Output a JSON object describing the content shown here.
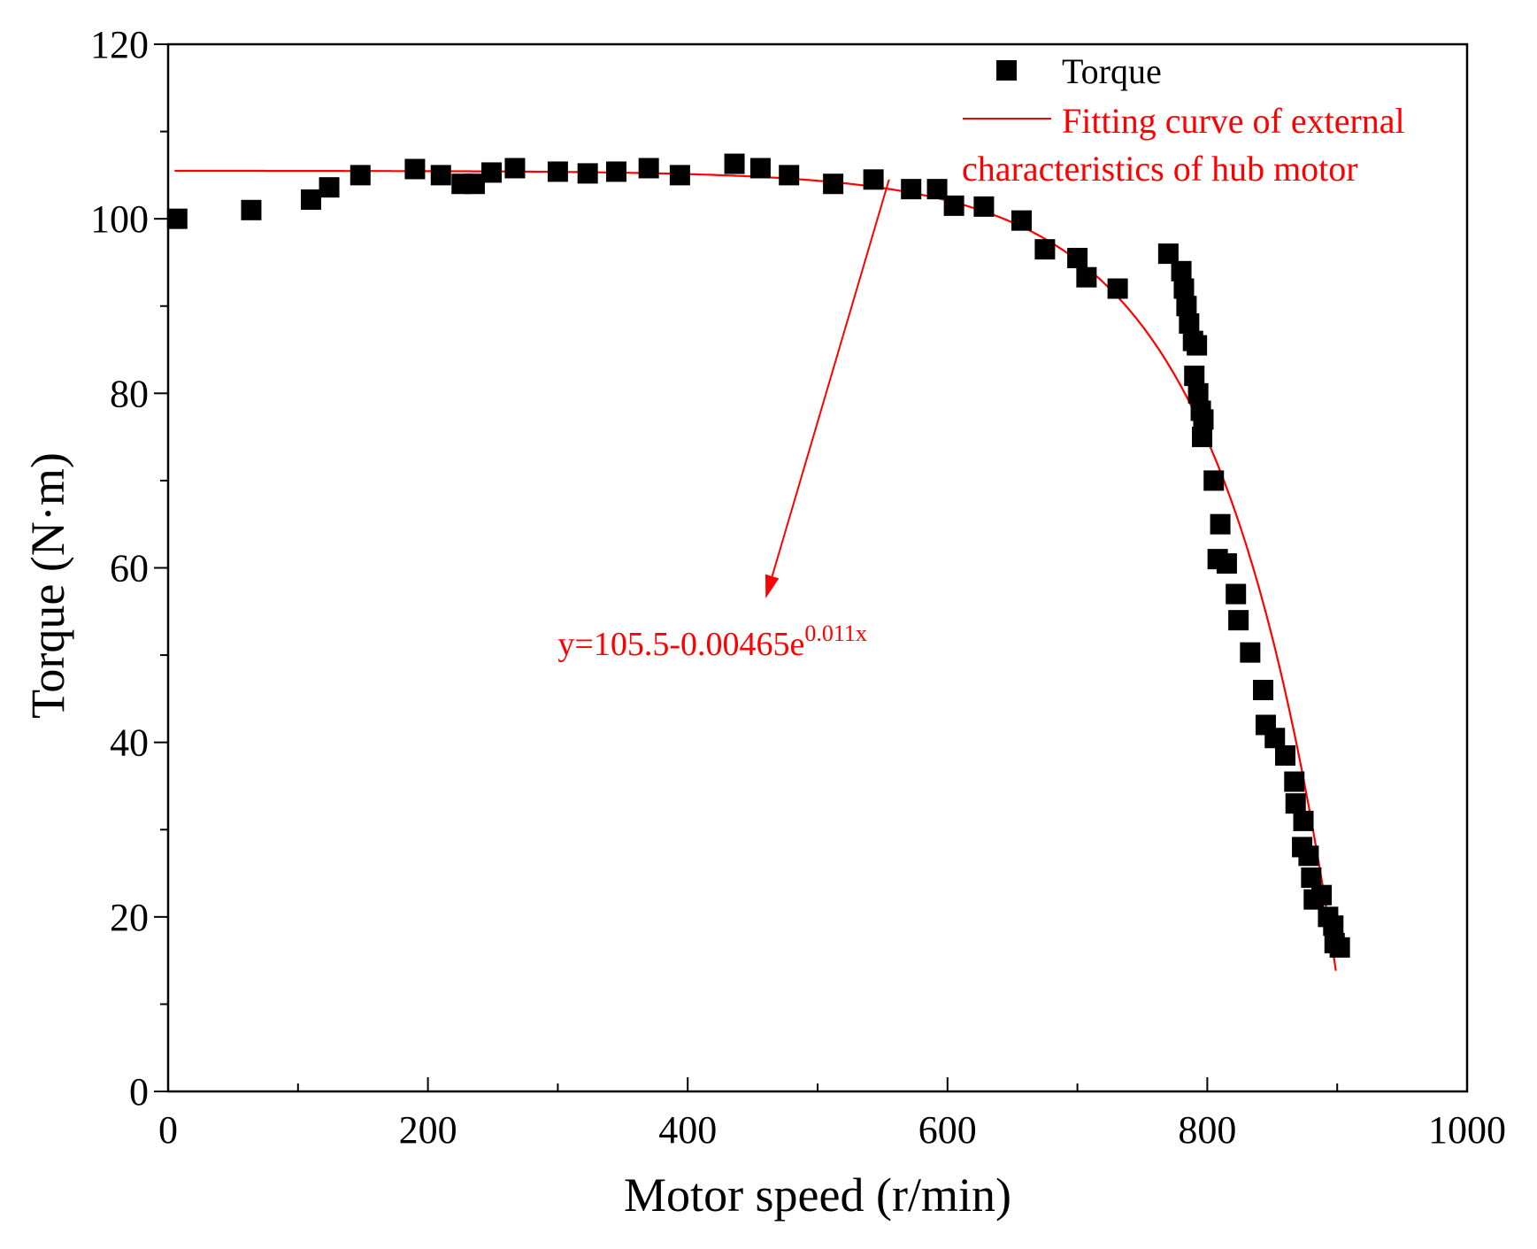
{
  "chart_data": {
    "type": "scatter",
    "title": "",
    "xlabel": "Motor speed (r/min)",
    "ylabel": "Torque (N·m)",
    "xlim": [
      0,
      1000
    ],
    "ylim": [
      0,
      120
    ],
    "x_ticks": [
      0,
      200,
      400,
      600,
      800,
      1000
    ],
    "x_minor_ticks": [
      100,
      300,
      500,
      700,
      900
    ],
    "y_ticks": [
      0,
      20,
      40,
      60,
      80,
      100,
      120
    ],
    "y_minor_ticks": [
      10,
      30,
      50,
      70,
      90,
      110
    ],
    "grid": false,
    "legend_position": "top-right",
    "series": [
      {
        "name": "Torque",
        "kind": "scatter",
        "marker": "square",
        "color": "#000000",
        "points": [
          [
            7,
            100
          ],
          [
            64,
            101
          ],
          [
            110,
            102.2
          ],
          [
            124,
            103.6
          ],
          [
            148,
            105
          ],
          [
            190,
            105.7
          ],
          [
            210,
            105
          ],
          [
            226,
            104
          ],
          [
            236,
            104
          ],
          [
            249,
            105.3
          ],
          [
            267,
            105.8
          ],
          [
            300,
            105.4
          ],
          [
            323,
            105.2
          ],
          [
            345,
            105.4
          ],
          [
            370,
            105.8
          ],
          [
            394,
            105
          ],
          [
            436,
            106.3
          ],
          [
            456,
            105.8
          ],
          [
            478,
            105
          ],
          [
            512,
            104
          ],
          [
            543,
            104.5
          ],
          [
            572,
            103.4
          ],
          [
            592,
            103.4
          ],
          [
            605,
            101.5
          ],
          [
            628,
            101.4
          ],
          [
            657,
            99.8
          ],
          [
            675,
            96.5
          ],
          [
            700,
            95.5
          ],
          [
            707,
            93.3
          ],
          [
            731,
            92
          ],
          [
            770,
            96
          ],
          [
            780,
            94
          ],
          [
            782,
            92
          ],
          [
            784,
            90
          ],
          [
            786,
            88
          ],
          [
            789,
            86
          ],
          [
            792,
            85.5
          ],
          [
            790,
            82
          ],
          [
            793,
            80
          ],
          [
            795,
            78
          ],
          [
            797,
            77
          ],
          [
            796,
            75
          ],
          [
            805,
            70
          ],
          [
            810,
            65
          ],
          [
            808,
            61
          ],
          [
            815,
            60.5
          ],
          [
            822,
            57
          ],
          [
            824,
            54
          ],
          [
            833,
            50.3
          ],
          [
            843,
            46
          ],
          [
            845,
            42
          ],
          [
            852,
            40.5
          ],
          [
            860,
            38.5
          ],
          [
            867,
            35.5
          ],
          [
            868,
            33
          ],
          [
            874,
            31
          ],
          [
            873,
            28
          ],
          [
            878,
            27
          ],
          [
            880,
            24.5
          ],
          [
            882,
            22
          ],
          [
            888,
            22.5
          ],
          [
            893,
            20
          ],
          [
            897,
            19
          ],
          [
            898,
            17
          ],
          [
            902,
            16.5
          ]
        ]
      },
      {
        "name": "Fitting curve of external characteristics of hub motor",
        "kind": "line",
        "color": "#ff0000",
        "formula": "y=105.5-0.00465e^(0.011x)",
        "fit": {
          "a": 105.5,
          "b": 0.00465,
          "c": 0.011
        },
        "x_range": [
          5,
          900
        ]
      }
    ],
    "legend": {
      "entries": [
        {
          "label": "Torque",
          "color": "#000000"
        },
        {
          "label_line1": "Fitting curve of external",
          "label_line2": "characteristics of hub motor",
          "color": "#ff0000"
        }
      ]
    },
    "annotation": {
      "equation_prefix": "y=105.5-0.00465e",
      "equation_exponent": "0.011x",
      "arrow_from": [
        555,
        104.5
      ],
      "arrow_to": [
        460,
        56.5
      ],
      "text_anchor": [
        300,
        50
      ],
      "color": "#ff0000"
    }
  }
}
